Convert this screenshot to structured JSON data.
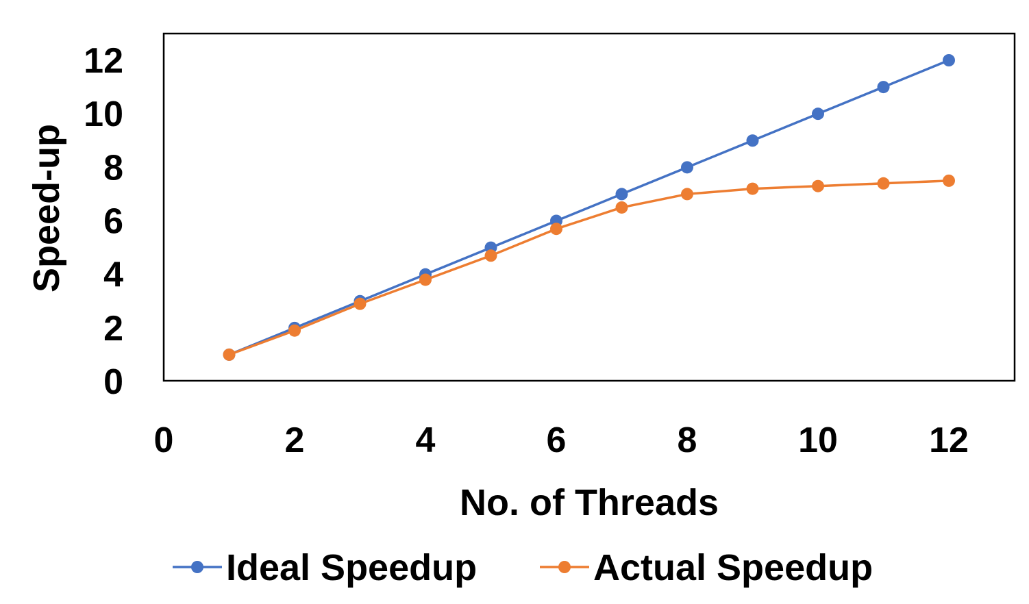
{
  "chart_data": {
    "type": "line",
    "title": "",
    "xlabel": "No. of Threads",
    "ylabel": "Speed-up",
    "xlim": [
      0,
      13
    ],
    "ylim": [
      0,
      12
    ],
    "x_ticks": [
      "0",
      "2",
      "4",
      "6",
      "8",
      "10",
      "12"
    ],
    "y_ticks": [
      "0",
      "2",
      "4",
      "6",
      "8",
      "10",
      "12"
    ],
    "grid": false,
    "legend_position": "bottom",
    "x": [
      1,
      2,
      3,
      4,
      5,
      6,
      7,
      8,
      9,
      10,
      11,
      12
    ],
    "series": [
      {
        "name": "Ideal Speedup",
        "color": "#4472C4",
        "values": [
          1,
          2,
          3,
          4,
          5,
          6,
          7,
          8,
          9,
          10,
          11,
          12
        ]
      },
      {
        "name": "Actual Speedup",
        "color": "#ED7D31",
        "values": [
          1,
          1.9,
          2.9,
          3.8,
          4.7,
          5.7,
          6.5,
          7.0,
          7.2,
          7.3,
          7.4,
          7.5
        ]
      }
    ]
  }
}
